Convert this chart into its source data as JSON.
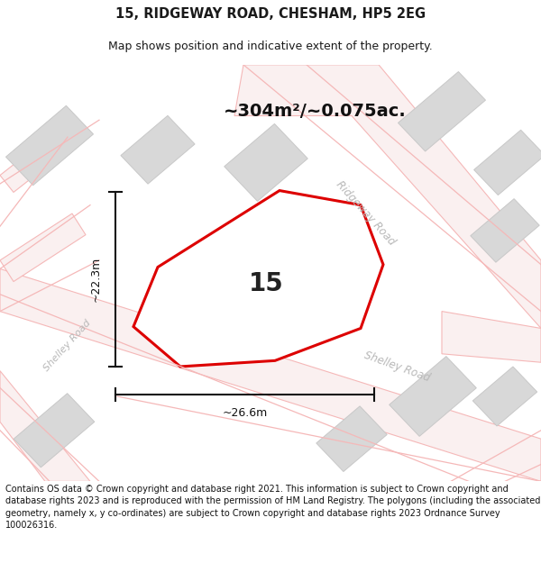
{
  "title": "15, RIDGEWAY ROAD, CHESHAM, HP5 2EG",
  "subtitle": "Map shows position and indicative extent of the property.",
  "area_label": "~304m²/~0.075ac.",
  "property_number": "15",
  "dim_width": "~26.6m",
  "dim_height": "~22.3m",
  "footer_text": "Contains OS data © Crown copyright and database right 2021. This information is subject to Crown copyright and database rights 2023 and is reproduced with the permission of HM Land Registry. The polygons (including the associated geometry, namely x, y co-ordinates) are subject to Crown copyright and database rights 2023 Ordnance Survey 100026316.",
  "map_bg": "#f7f6f6",
  "title_color": "#1a1a1a",
  "road_label_color": "#b8b8b8",
  "property_edge": "#dd0000",
  "dim_color": "#111111",
  "road_line_color": "#f5b8b8",
  "road_fill": "#faf0f0",
  "building_edge": "#c8c8c8",
  "building_fill": "#d8d8d8"
}
